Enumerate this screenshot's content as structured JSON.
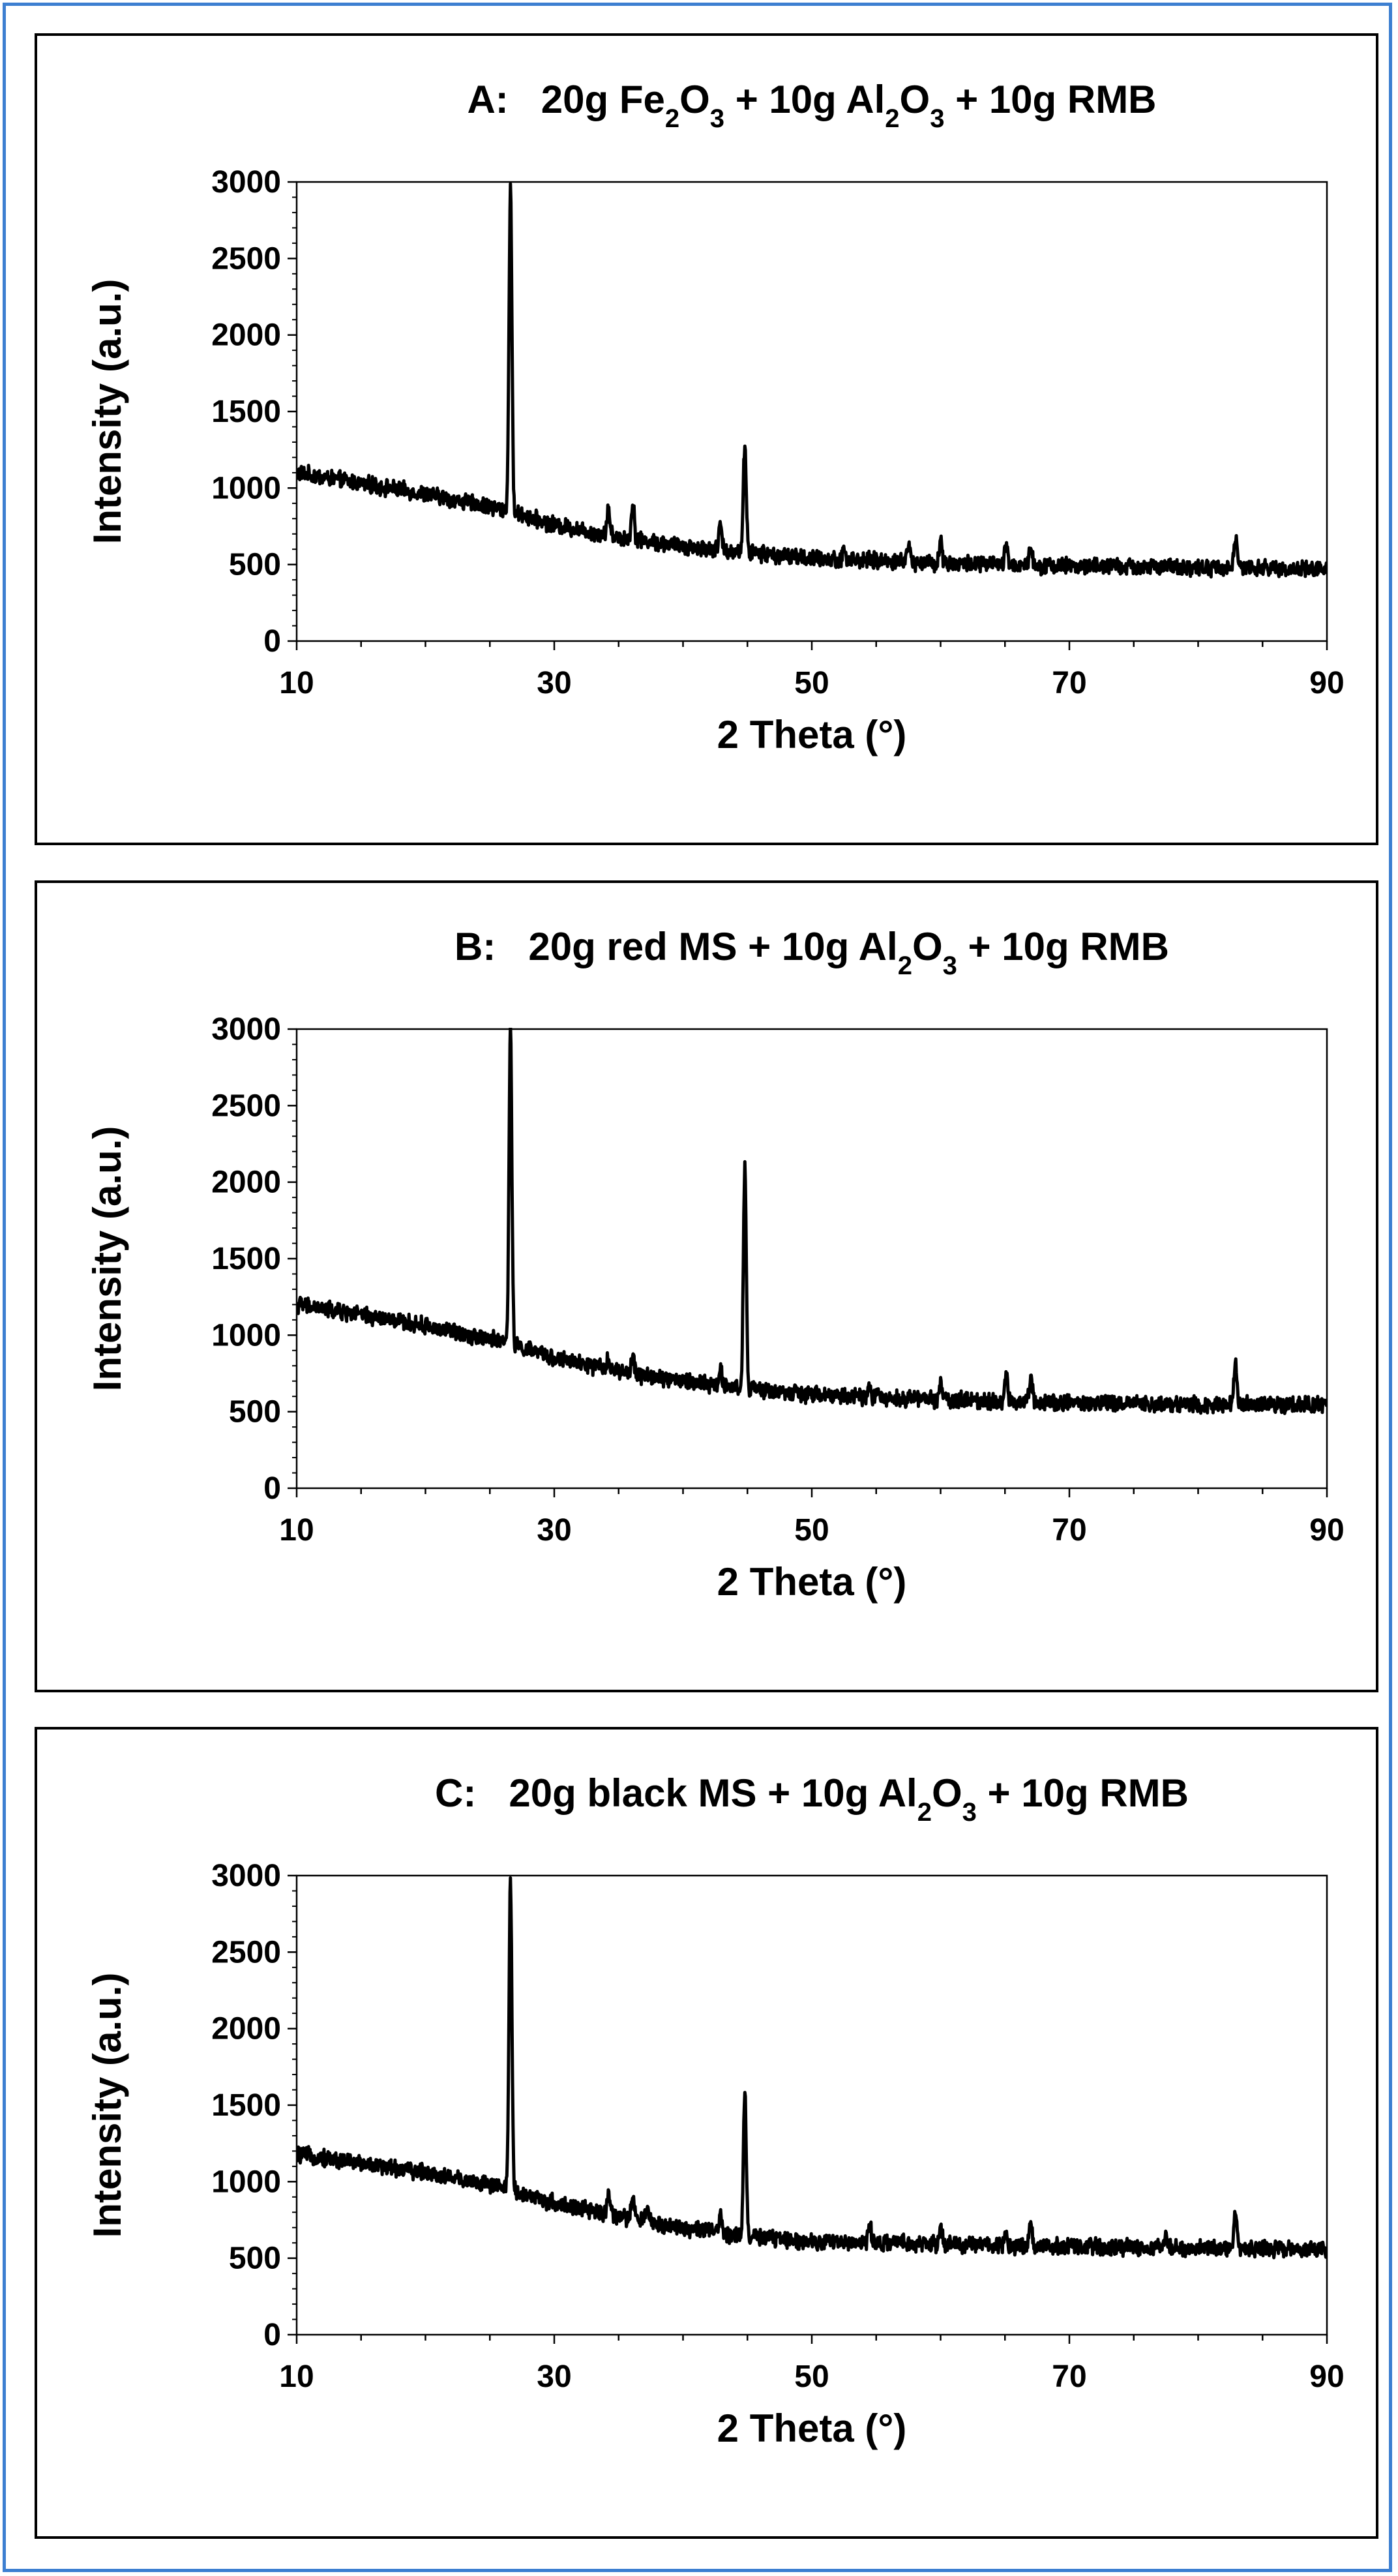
{
  "colors": {
    "frame_border": "#3d7fd1",
    "panel_border": "#000000",
    "trace": "#000000",
    "background": "#ffffff"
  },
  "chart_data": [
    {
      "type": "line",
      "title": {
        "panel_label": "A:",
        "segments": [
          {
            "t": "20g Fe",
            "sub": false
          },
          {
            "t": "2",
            "sub": true
          },
          {
            "t": "O",
            "sub": false
          },
          {
            "t": "3",
            "sub": true
          },
          {
            "t": " + 10g Al",
            "sub": false
          },
          {
            "t": "2",
            "sub": true
          },
          {
            "t": "O",
            "sub": false
          },
          {
            "t": "3",
            "sub": true
          },
          {
            "t": " + 10g RMB",
            "sub": false
          }
        ]
      },
      "xlabel": "2 Theta (°)",
      "ylabel": "Intensity (a.u.)",
      "xlim": [
        10,
        90
      ],
      "ylim": [
        0,
        3000
      ],
      "xticks": [
        10,
        30,
        50,
        70,
        90
      ],
      "yticks": [
        0,
        500,
        1000,
        1500,
        2000,
        2500,
        3000
      ],
      "baseline": [
        [
          10,
          1100
        ],
        [
          20,
          960
        ],
        [
          26,
          860
        ],
        [
          30,
          760
        ],
        [
          35,
          680
        ],
        [
          40,
          620
        ],
        [
          45,
          580
        ],
        [
          50,
          540
        ],
        [
          60,
          510
        ],
        [
          70,
          490
        ],
        [
          80,
          480
        ],
        [
          90,
          470
        ]
      ],
      "noise": 45,
      "peaks": [
        {
          "x": 26.6,
          "y": 3000
        },
        {
          "x": 34.2,
          "y": 870
        },
        {
          "x": 36.1,
          "y": 920
        },
        {
          "x": 42.9,
          "y": 760
        },
        {
          "x": 44.8,
          "y": 1300
        },
        {
          "x": 52.5,
          "y": 600
        },
        {
          "x": 57.5,
          "y": 640
        },
        {
          "x": 60.0,
          "y": 660
        },
        {
          "x": 65.1,
          "y": 620
        },
        {
          "x": 67.0,
          "y": 630
        },
        {
          "x": 82.9,
          "y": 690
        }
      ]
    },
    {
      "type": "line",
      "title": {
        "panel_label": "B:",
        "segments": [
          {
            "t": "20g red MS + 10g Al",
            "sub": false
          },
          {
            "t": "2",
            "sub": true
          },
          {
            "t": "O",
            "sub": false
          },
          {
            "t": "3",
            "sub": true
          },
          {
            "t": " + 10g RMB",
            "sub": false
          }
        ]
      },
      "xlabel": "2 Theta (°)",
      "ylabel": "Intensity (a.u.)",
      "xlim": [
        10,
        90
      ],
      "ylim": [
        0,
        3000
      ],
      "xticks": [
        10,
        30,
        50,
        70,
        90
      ],
      "yticks": [
        0,
        500,
        1000,
        1500,
        2000,
        2500,
        3000
      ],
      "baseline": [
        [
          10,
          1200
        ],
        [
          20,
          1060
        ],
        [
          26,
          960
        ],
        [
          30,
          850
        ],
        [
          35,
          760
        ],
        [
          40,
          700
        ],
        [
          45,
          650
        ],
        [
          50,
          610
        ],
        [
          60,
          580
        ],
        [
          70,
          560
        ],
        [
          80,
          550
        ],
        [
          90,
          545
        ]
      ],
      "noise": 45,
      "peaks": [
        {
          "x": 26.6,
          "y": 3000
        },
        {
          "x": 34.2,
          "y": 870
        },
        {
          "x": 36.1,
          "y": 860
        },
        {
          "x": 42.9,
          "y": 800
        },
        {
          "x": 44.8,
          "y": 2100
        },
        {
          "x": 54.5,
          "y": 680
        },
        {
          "x": 60.0,
          "y": 700
        },
        {
          "x": 65.1,
          "y": 730
        },
        {
          "x": 67.0,
          "y": 740
        },
        {
          "x": 82.9,
          "y": 850
        }
      ]
    },
    {
      "type": "line",
      "title": {
        "panel_label": "C:",
        "segments": [
          {
            "t": "20g black MS + 10g Al",
            "sub": false
          },
          {
            "t": "2",
            "sub": true
          },
          {
            "t": "O",
            "sub": false
          },
          {
            "t": "3",
            "sub": true
          },
          {
            "t": " + 10g RMB",
            "sub": false
          }
        ]
      },
      "xlabel": "2 Theta (°)",
      "ylabel": "Intensity (a.u.)",
      "xlim": [
        10,
        90
      ],
      "ylim": [
        0,
        3000
      ],
      "xticks": [
        10,
        30,
        50,
        70,
        90
      ],
      "yticks": [
        0,
        500,
        1000,
        1500,
        2000,
        2500,
        3000
      ],
      "baseline": [
        [
          10,
          1180
        ],
        [
          20,
          1060
        ],
        [
          26,
          960
        ],
        [
          30,
          860
        ],
        [
          35,
          770
        ],
        [
          40,
          700
        ],
        [
          45,
          640
        ],
        [
          50,
          610
        ],
        [
          60,
          590
        ],
        [
          70,
          575
        ],
        [
          80,
          565
        ],
        [
          90,
          560
        ]
      ],
      "noise": 45,
      "peaks": [
        {
          "x": 26.6,
          "y": 3000
        },
        {
          "x": 34.2,
          "y": 920
        },
        {
          "x": 36.1,
          "y": 900
        },
        {
          "x": 37.2,
          "y": 840
        },
        {
          "x": 42.9,
          "y": 790
        },
        {
          "x": 44.8,
          "y": 1580
        },
        {
          "x": 54.5,
          "y": 720
        },
        {
          "x": 60.0,
          "y": 710
        },
        {
          "x": 65.1,
          "y": 680
        },
        {
          "x": 67.0,
          "y": 720
        },
        {
          "x": 77.5,
          "y": 650
        },
        {
          "x": 82.9,
          "y": 800
        }
      ]
    }
  ]
}
